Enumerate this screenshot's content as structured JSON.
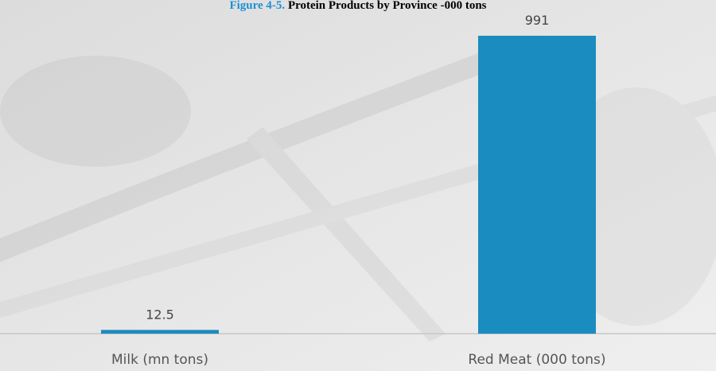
{
  "chart_data": {
    "type": "bar",
    "figure_label": "Figure 4-5.",
    "title": "Protein Products by Province -000 tons",
    "categories": [
      "Milk (mn tons)",
      "Red Meat (000 tons)"
    ],
    "values": [
      12.5,
      991
    ],
    "color": "#1b8cbf",
    "title_label_color": "#1e90d6"
  }
}
